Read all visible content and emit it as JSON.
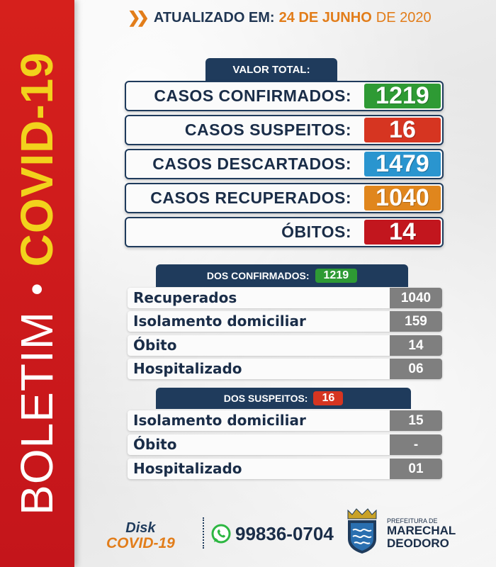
{
  "sidebar": {
    "word1": "BOLETIM",
    "separator": "•",
    "word2": "COVID-19"
  },
  "header": {
    "label": "ATUALIZADO EM:",
    "date": "24 DE JUNHO",
    "year": "DE 2020"
  },
  "total": {
    "title": "VALOR TOTAL:",
    "rows": [
      {
        "label": "CASOS CONFIRMADOS:",
        "value": "1219",
        "color": "#2e9a34"
      },
      {
        "label": "CASOS SUSPEITOS:",
        "value": "16",
        "color": "#d63521"
      },
      {
        "label": "CASOS DESCARTADOS:",
        "value": "1479",
        "color": "#2a95cf"
      },
      {
        "label": "CASOS RECUPERADOS:",
        "value": "1040",
        "color": "#e0861d"
      },
      {
        "label": "ÓBITOS:",
        "value": "14",
        "color": "#c2161e"
      }
    ]
  },
  "confirmed": {
    "title": "DOS CONFIRMADOS:",
    "badge": "1219",
    "rows": [
      {
        "label": "Recuperados",
        "value": "1040"
      },
      {
        "label": "Isolamento domiciliar",
        "value": "159"
      },
      {
        "label": "Óbito",
        "value": "14"
      },
      {
        "label": "Hospitalizado",
        "value": "06"
      }
    ]
  },
  "suspected": {
    "title": "DOS SUSPEITOS:",
    "badge": "16",
    "rows": [
      {
        "label": "Isolamento domiciliar",
        "value": "15"
      },
      {
        "label": "Óbito",
        "value": "-"
      },
      {
        "label": "Hospitalizado",
        "value": "01"
      }
    ]
  },
  "footer": {
    "disk_line1": "Disk",
    "disk_line2": "COVID-19",
    "phone": "99836-0704",
    "pref_line1": "PREFEITURA DE",
    "pref_line2": "MARECHAL",
    "pref_line3": "DEODORO"
  }
}
